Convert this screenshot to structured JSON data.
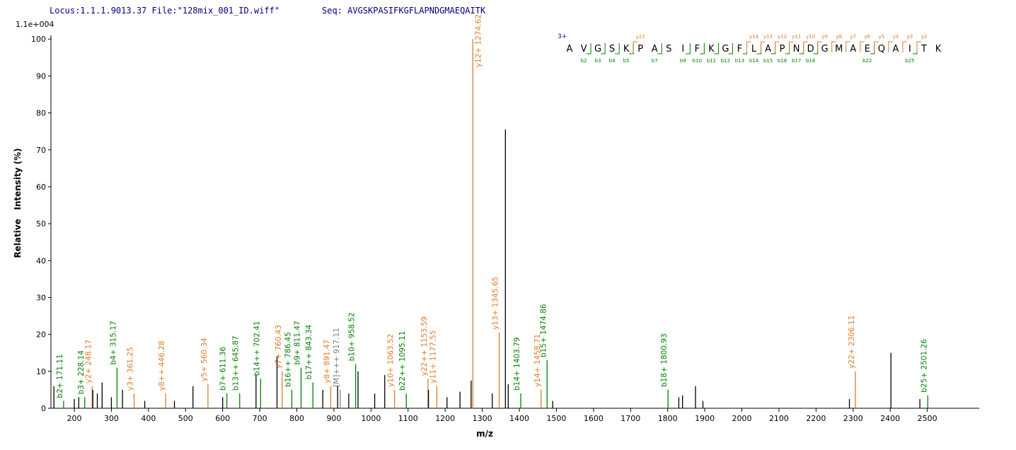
{
  "header": {
    "locus": "Locus:1.1.1.9013.37 File:\"128mix_001_ID.wiff\"",
    "seq": "Seq: AVGSKPASIFKGFLAPNDGMAEQAITK"
  },
  "chart_data": {
    "type": "spectrum",
    "scale_label": "1.1e+004",
    "xlabel": "m/z",
    "ylabel": "Relative   Intensity (%)",
    "xlim": [
      137,
      2640
    ],
    "ylim": [
      0,
      101
    ],
    "xticks": [
      200,
      300,
      400,
      500,
      600,
      700,
      800,
      900,
      1000,
      1100,
      1200,
      1300,
      1400,
      1500,
      1600,
      1700,
      1800,
      1900,
      2000,
      2100,
      2200,
      2300,
      2400,
      2500
    ],
    "yticks": [
      0,
      10,
      20,
      30,
      40,
      50,
      60,
      70,
      80,
      90,
      100
    ],
    "series": [
      {
        "color": "#008000",
        "x": [
          171.11,
          228.14,
          315.17,
          611.36,
          645.87,
          702.41,
          786.45,
          811.47,
          843.34,
          958.52,
          1095.11,
          1403.79,
          1474.86,
          1800.93,
          2501.26
        ],
        "values": [
          2,
          3,
          11,
          4,
          4,
          8,
          5,
          11,
          7,
          12,
          4,
          4,
          13,
          5,
          3.5
        ],
        "labels": [
          "b2+ 171.11",
          "b3+ 228.14",
          "b4+ 315.17",
          "b7+ 611.36",
          "b13++ 645.87",
          "b14++ 702.41",
          "b16++ 786.45",
          "b9+ 811.47",
          "b17++ 843.34",
          "b10+ 958.52",
          "b22++ 1095.11",
          "b14+ 1403.79",
          "b15+ 1474.86",
          "b18+ 1800.93",
          "b25+ 2501.26"
        ]
      },
      {
        "color": "#e07b28",
        "x": [
          248.17,
          361.25,
          446.28,
          560.34,
          760.43,
          891.47,
          1063.52,
          1153.59,
          1177.55,
          1274.62,
          1345.65,
          1458.71,
          2306.11
        ],
        "values": [
          6,
          4,
          4,
          6.5,
          10,
          6,
          5,
          8,
          6,
          100,
          20.5,
          5,
          10
        ],
        "labels": [
          "y2+ 248.17",
          "y3+ 361.25",
          "y8++ 446.28",
          "y5+ 560.34",
          "y7+ 760.43",
          "y8+ 891.47",
          "y10+ 1063.52",
          "y22++ 1153.59",
          "y11+ 1177.55",
          "y12+ 1274.62",
          "y13+ 1345.65",
          "y14+ 1458.71",
          "y22+ 2306.11"
        ]
      },
      {
        "color": "#808080",
        "x": [
          917.11
        ],
        "values": [
          5
        ],
        "labels": [
          "[M]+++ 917.11"
        ]
      },
      {
        "color": "#000000",
        "x": [
          145,
          200,
          212,
          250,
          262,
          275,
          300,
          330,
          390,
          470,
          520,
          600,
          690,
          746.6,
          870,
          910,
          940,
          965,
          1010,
          1037,
          1155,
          1205,
          1240,
          1270,
          1327,
          1362.4,
          1370,
          1490,
          1830,
          1840,
          1875,
          1895,
          2290,
          2402,
          2480
        ],
        "values": [
          6,
          2.5,
          3,
          5,
          4,
          7,
          3,
          5,
          2,
          2,
          6,
          3,
          9,
          14,
          5,
          6,
          4,
          10,
          4,
          9,
          5,
          3,
          4.5,
          7.5,
          4,
          75.5,
          6.5,
          2,
          3,
          3.5,
          6,
          2,
          2.5,
          15,
          2.5
        ]
      }
    ],
    "annotation": {
      "charge": "3+",
      "residues": [
        "A",
        "V",
        "G",
        "S",
        "K",
        "P",
        "A",
        "S",
        "I",
        "F",
        "K",
        "G",
        "F",
        "L",
        "A",
        "P",
        "N",
        "D",
        "G",
        "M",
        "A",
        "E",
        "Q",
        "A",
        "I",
        "T",
        "K"
      ],
      "b_ions": [
        null,
        "b2",
        "b3",
        "b4",
        "b5",
        null,
        "b7",
        null,
        "b9",
        "b10",
        "b11",
        "b12",
        "b13",
        "b14",
        "b15",
        "b16",
        "b17",
        "b18",
        null,
        null,
        null,
        "b22",
        null,
        null,
        "b25",
        null,
        null
      ],
      "y_ions": [
        null,
        null,
        null,
        null,
        null,
        "y22",
        null,
        null,
        null,
        null,
        null,
        null,
        null,
        "y14",
        "y13",
        "y12",
        "y11",
        "y10",
        "y9",
        "y8",
        "y7",
        "y6",
        "y5",
        "y4",
        "y3",
        "y2",
        null
      ]
    }
  }
}
